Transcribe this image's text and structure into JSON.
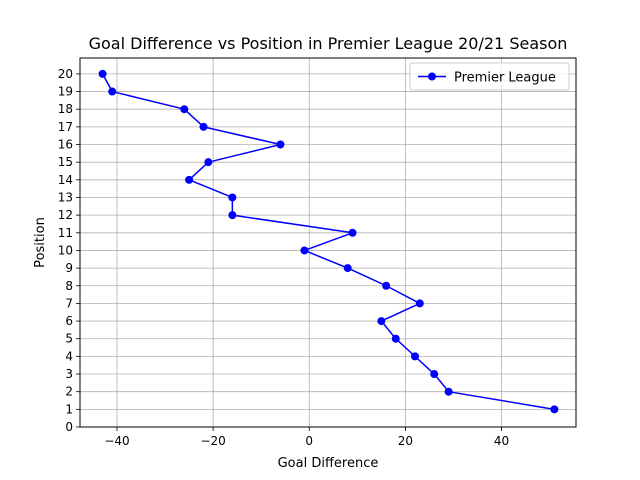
{
  "chart_data": {
    "type": "line",
    "title": "Goal Difference vs Position in Premier League 20/21 Season",
    "xlabel": "Goal Difference",
    "ylabel": "Position",
    "xlim": [
      -47.7,
      55.5
    ],
    "ylim": [
      0,
      20.9
    ],
    "x_ticks": [
      -40,
      -20,
      0,
      20,
      40
    ],
    "x_tick_labels": [
      "−40",
      "−20",
      "0",
      "20",
      "40"
    ],
    "y_ticks": [
      0,
      1,
      2,
      3,
      4,
      5,
      6,
      7,
      8,
      9,
      10,
      11,
      12,
      13,
      14,
      15,
      16,
      17,
      18,
      19,
      20
    ],
    "grid": true,
    "legend_position": "top-right",
    "series": [
      {
        "name": "Premier League",
        "color": "#0000ff",
        "marker": "circle",
        "points": [
          {
            "x": 51,
            "y": 1
          },
          {
            "x": 29,
            "y": 2
          },
          {
            "x": 26,
            "y": 3
          },
          {
            "x": 22,
            "y": 4
          },
          {
            "x": 18,
            "y": 5
          },
          {
            "x": 15,
            "y": 6
          },
          {
            "x": 23,
            "y": 7
          },
          {
            "x": 16,
            "y": 8
          },
          {
            "x": 8,
            "y": 9
          },
          {
            "x": -1,
            "y": 10
          },
          {
            "x": 9,
            "y": 11
          },
          {
            "x": -16,
            "y": 12
          },
          {
            "x": -16,
            "y": 13
          },
          {
            "x": -25,
            "y": 14
          },
          {
            "x": -21,
            "y": 15
          },
          {
            "x": -6,
            "y": 16
          },
          {
            "x": -22,
            "y": 17
          },
          {
            "x": -26,
            "y": 18
          },
          {
            "x": -41,
            "y": 19
          },
          {
            "x": -43,
            "y": 20
          }
        ]
      }
    ]
  }
}
